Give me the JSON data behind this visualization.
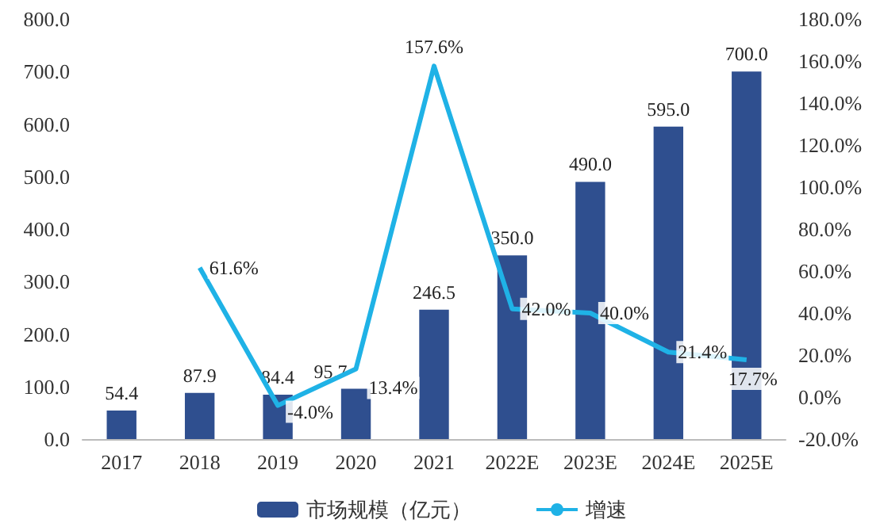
{
  "chart_data": {
    "type": "bar",
    "categories": [
      "2017",
      "2018",
      "2019",
      "2020",
      "2021",
      "2022E",
      "2023E",
      "2024E",
      "2025E"
    ],
    "series": [
      {
        "name": "市场规模（亿元）",
        "color": "#2f4f8f",
        "values": [
          54.4,
          87.9,
          84.4,
          95.7,
          246.5,
          350.0,
          490.0,
          595.0,
          700.0
        ],
        "value_labels": [
          "54.4",
          "87.9",
          "84.4",
          "95.7",
          "246.5",
          "350.0",
          "490.0",
          "595.0",
          "700.0"
        ]
      },
      {
        "name": "增速",
        "type": "line",
        "axis": "y2",
        "color": "#1fb2e6",
        "values": [
          null,
          61.6,
          -4.0,
          13.4,
          157.6,
          42.0,
          40.0,
          21.4,
          17.7
        ],
        "value_labels": [
          null,
          "61.6%",
          "-4.0%",
          "13.4%",
          "157.6%",
          "42.0%",
          "40.0%",
          "21.4%",
          "17.7%"
        ]
      }
    ],
    "ylim": [
      0,
      800
    ],
    "yticks": [
      {
        "value": 0,
        "label": "0.0"
      },
      {
        "value": 100,
        "label": "100.0"
      },
      {
        "value": 200,
        "label": "200.0"
      },
      {
        "value": 300,
        "label": "300.0"
      },
      {
        "value": 400,
        "label": "400.0"
      },
      {
        "value": 500,
        "label": "500.0"
      },
      {
        "value": 600,
        "label": "600.0"
      },
      {
        "value": 700,
        "label": "700.0"
      },
      {
        "value": 800,
        "label": "800.0"
      }
    ],
    "y2lim": [
      -20,
      180
    ],
    "y2ticks": [
      {
        "value": -20,
        "label": "-20.0%"
      },
      {
        "value": 0,
        "label": "0.0%"
      },
      {
        "value": 20,
        "label": "20.0%"
      },
      {
        "value": 40,
        "label": "40.0%"
      },
      {
        "value": 60,
        "label": "60.0%"
      },
      {
        "value": 80,
        "label": "80.0%"
      },
      {
        "value": 100,
        "label": "100.0%"
      },
      {
        "value": 120,
        "label": "120.0%"
      },
      {
        "value": 140,
        "label": "140.0%"
      },
      {
        "value": 160,
        "label": "160.0%"
      },
      {
        "value": 180,
        "label": "180.0%"
      }
    ],
    "legend": "bottom",
    "grid": false,
    "marker": "none"
  }
}
